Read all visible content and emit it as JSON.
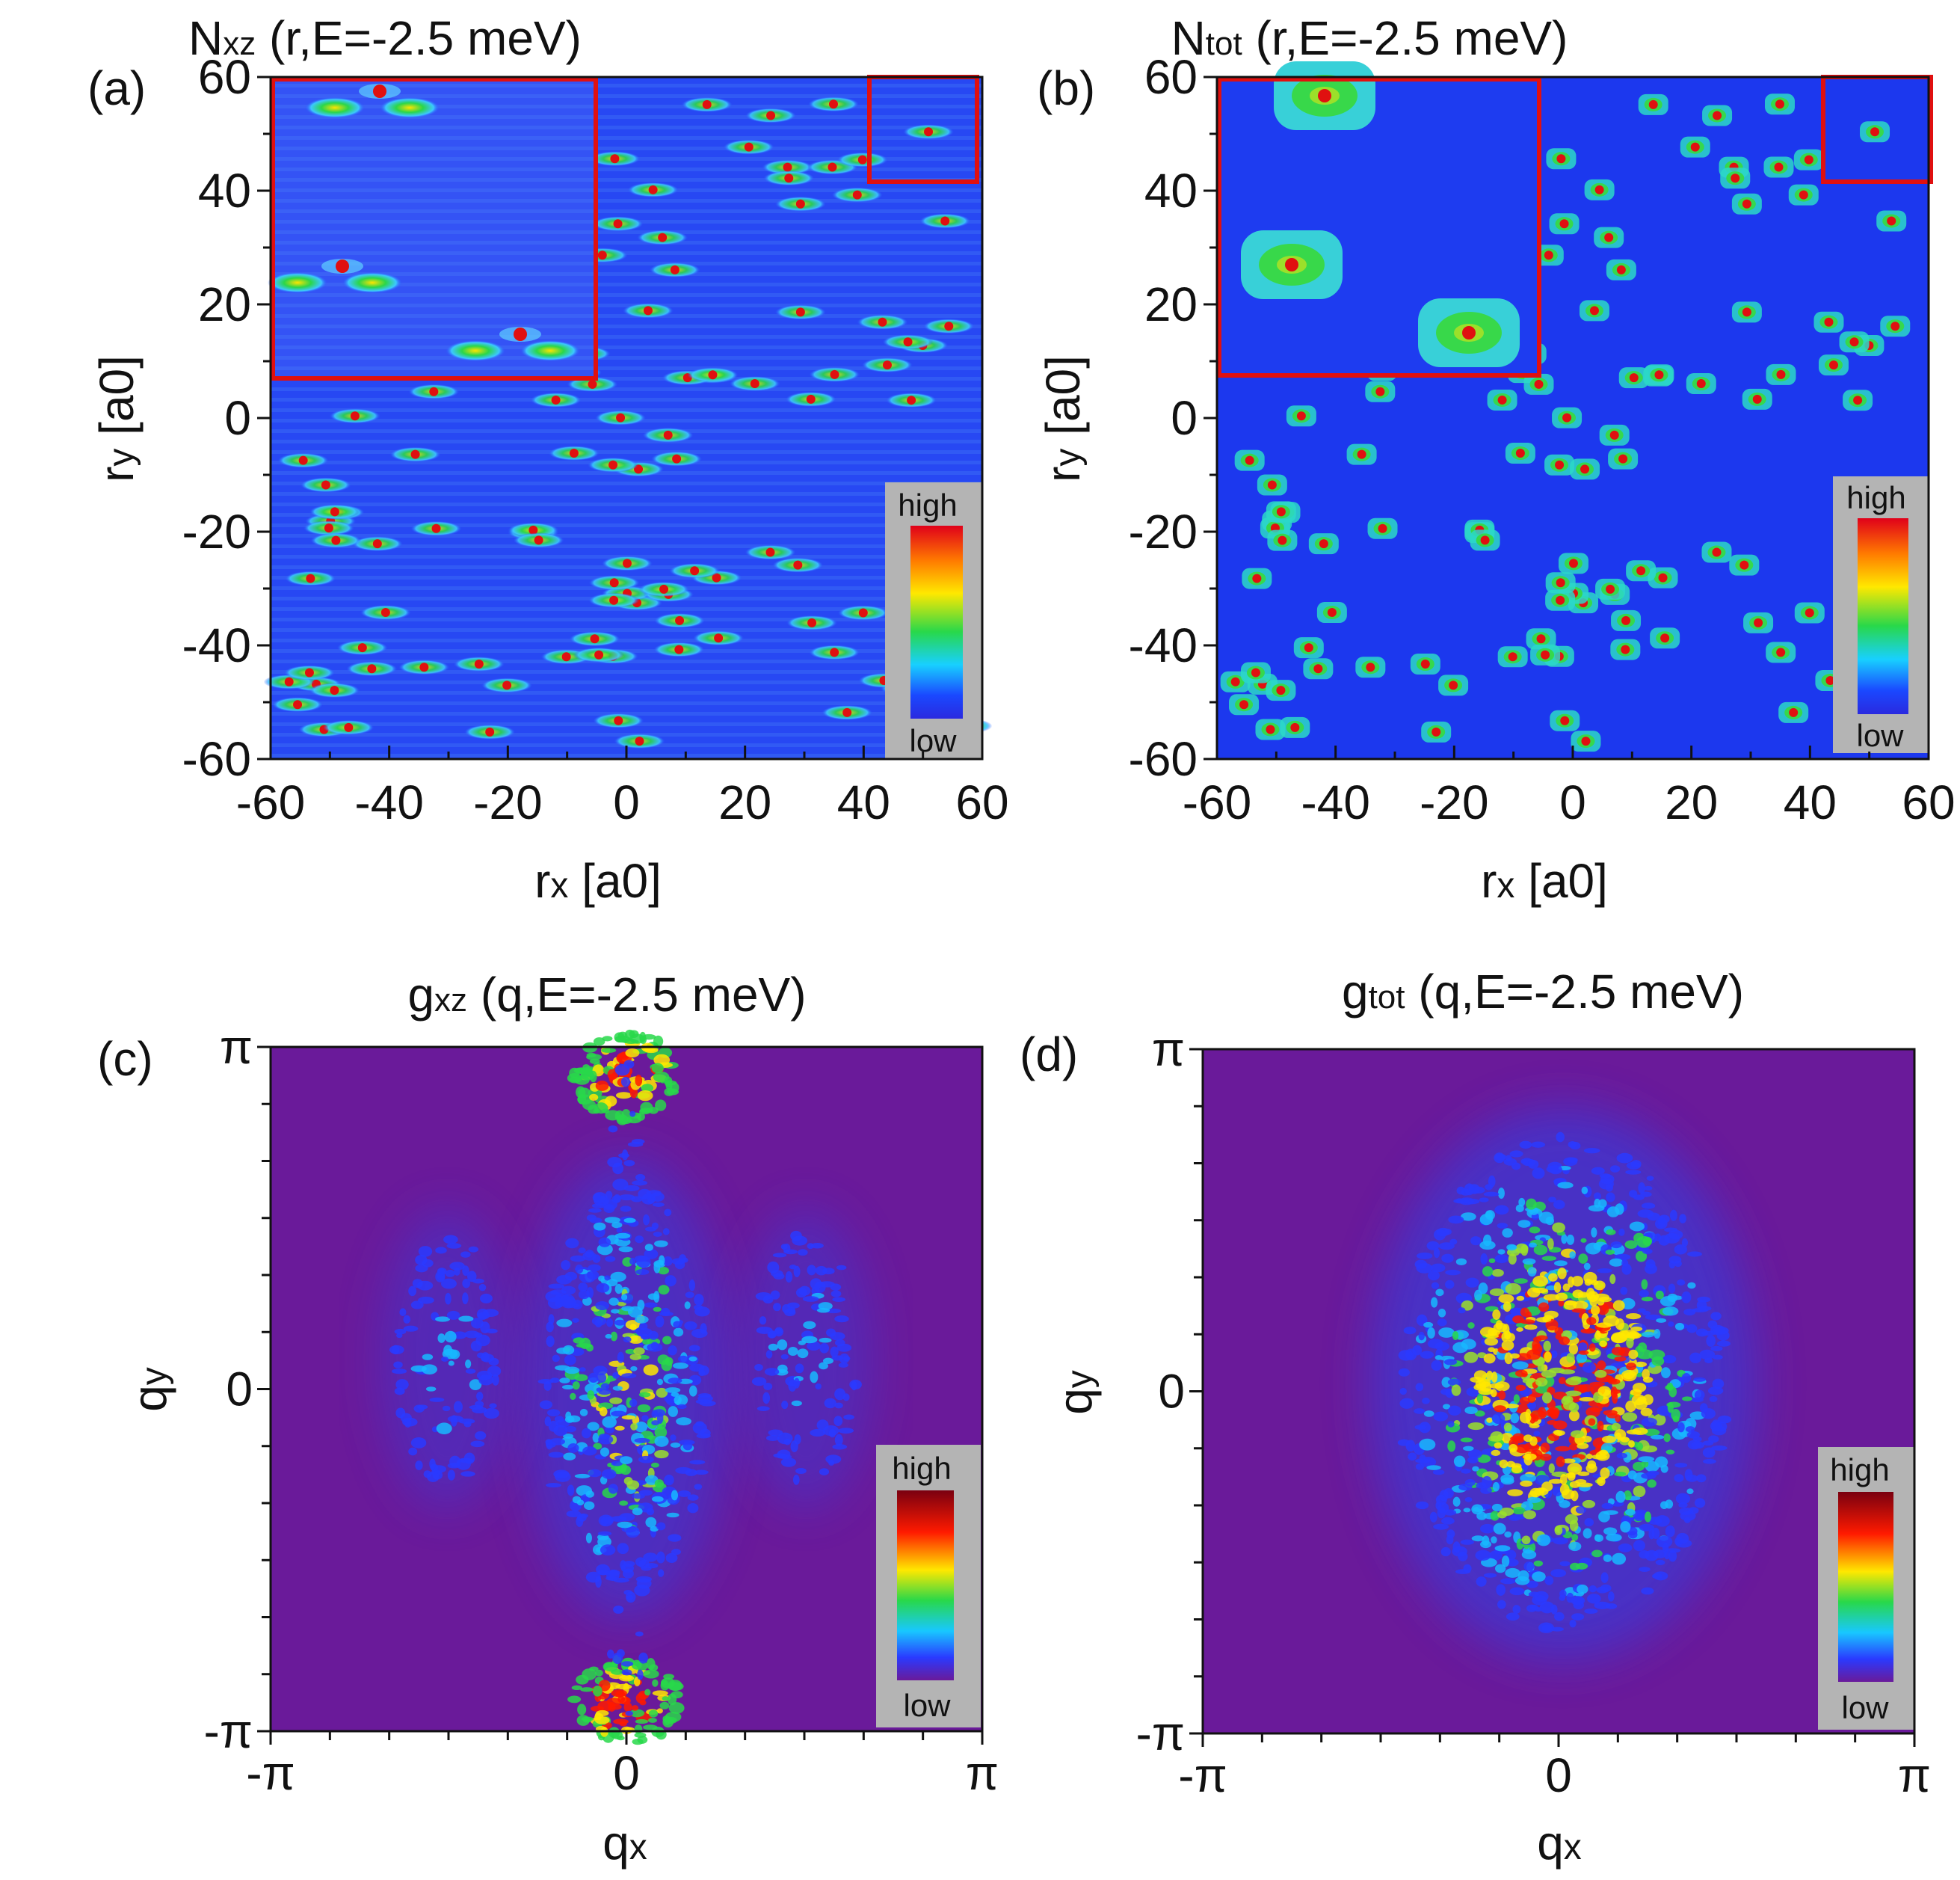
{
  "figure": "4-panel LDOS / QPI figure",
  "chart_data": [
    {
      "panel": "(a)",
      "type": "heatmap",
      "title_main": "N",
      "title_sub": "xz",
      "title_rest": " (r,E=-2.5 meV)",
      "xlabel_main": "r",
      "xlabel_sub": "x",
      "xlabel_rest": " [a0]",
      "ylabel_main": "r",
      "ylabel_sub": "y",
      "ylabel_rest": " [a0]",
      "xlim": [
        -60,
        60
      ],
      "ylim": [
        -60,
        60
      ],
      "xticks": [
        "-60",
        "-40",
        "-20",
        "0",
        "20",
        "40",
        "60"
      ],
      "yticks": [
        "60",
        "40",
        "20",
        "0",
        "-20",
        "-40",
        "-60"
      ],
      "colorbar": {
        "high": "high",
        "low": "low"
      },
      "inset": "zoom of red-boxed region at x in [41,59], y in [41,59]"
    },
    {
      "panel": "(b)",
      "type": "heatmap",
      "title_main": "N",
      "title_sub": "tot",
      "title_rest": " (r,E=-2.5 meV)",
      "xlabel_main": "r",
      "xlabel_sub": "x",
      "xlabel_rest": " [a0]",
      "ylabel_main": "r",
      "ylabel_sub": "y",
      "ylabel_rest": " [a0]",
      "xlim": [
        -60,
        60
      ],
      "ylim": [
        -60,
        60
      ],
      "xticks": [
        "-60",
        "-40",
        "-20",
        "0",
        "20",
        "40",
        "60"
      ],
      "yticks": [
        "60",
        "40",
        "20",
        "0",
        "-20",
        "-40",
        "-60"
      ],
      "colorbar": {
        "high": "high",
        "low": "low"
      },
      "inset": "zoom of red-boxed region at x in [42,59], y in [41,59]"
    },
    {
      "panel": "(c)",
      "type": "heatmap",
      "title_main": "g",
      "title_sub": "xz",
      "title_rest": " (q,E=-2.5 meV)",
      "xlabel_main": "q",
      "xlabel_sub": "x",
      "ylabel_main": "q",
      "ylabel_sub": "y",
      "xticks": [
        "-π",
        "0",
        "π"
      ],
      "yticks": [
        "π",
        "0",
        "-π"
      ],
      "colorbar": {
        "high": "high",
        "low": "low"
      }
    },
    {
      "panel": "(d)",
      "type": "heatmap",
      "title_main": "g",
      "title_sub": "tot",
      "title_rest": " (q,E=-2.5 meV)",
      "xlabel_main": "q",
      "xlabel_sub": "x",
      "ylabel_main": "q",
      "ylabel_sub": "y",
      "xticks": [
        "-π",
        "0",
        "π"
      ],
      "yticks": [
        "π",
        "0",
        "-π"
      ],
      "colorbar": {
        "high": "high",
        "low": "low"
      }
    }
  ],
  "colors": {
    "real_space_background": "#1e3cf0",
    "momentum_background": "#6a1a9a",
    "impurity_marker": "#e01010",
    "inset_frame": "#e01010",
    "colorbar_frame": "#b4b4b4"
  }
}
